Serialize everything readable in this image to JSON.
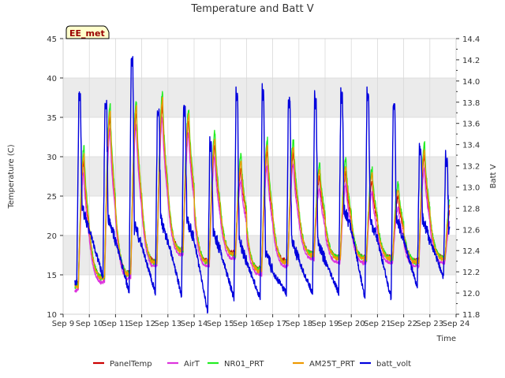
{
  "chart_data": {
    "type": "line",
    "title": "Temperature and Batt V",
    "xlabel": "Time",
    "ylabel_left": "Temperature (C)",
    "ylabel_right": "Batt V",
    "station_label": "EE_met",
    "x_ticks": [
      "Sep 9",
      "Sep 10",
      "Sep 11",
      "Sep 12",
      "Sep 13",
      "Sep 14",
      "Sep 15",
      "Sep 16",
      "Sep 17",
      "Sep 18",
      "Sep 19",
      "Sep 20",
      "Sep 21",
      "Sep 22",
      "Sep 23",
      "Sep 24"
    ],
    "xlim_days": [
      0,
      15
    ],
    "ylim_left": [
      10,
      45
    ],
    "y_ticks_left": [
      "10",
      "15",
      "20",
      "25",
      "30",
      "35",
      "40",
      "45"
    ],
    "ylim_right": [
      11.8,
      14.4
    ],
    "y_ticks_right": [
      "11.8",
      "12.0",
      "12.2",
      "12.4",
      "12.6",
      "12.8",
      "13.0",
      "13.2",
      "13.4",
      "13.6",
      "13.8",
      "14.0",
      "14.2",
      "14.4"
    ],
    "shaded_bands_left": [
      [
        15,
        20
      ],
      [
        25,
        30
      ],
      [
        35,
        40
      ]
    ],
    "x_start_day": 0.45,
    "x_end_day": 14.75,
    "temp_daily": [
      {
        "day": 0,
        "min": 13.5,
        "max": 30.0
      },
      {
        "day": 1,
        "min": 14.5,
        "max": 35.5
      },
      {
        "day": 2,
        "min": 15.0,
        "max": 36.0
      },
      {
        "day": 3,
        "min": 16.5,
        "max": 37.0
      },
      {
        "day": 4,
        "min": 18.0,
        "max": 35.0
      },
      {
        "day": 5,
        "min": 16.5,
        "max": 32.0
      },
      {
        "day": 6,
        "min": 17.5,
        "max": 29.0
      },
      {
        "day": 7,
        "min": 15.5,
        "max": 31.0
      },
      {
        "day": 8,
        "min": 16.5,
        "max": 31.0
      },
      {
        "day": 9,
        "min": 17.5,
        "max": 28.0
      },
      {
        "day": 10,
        "min": 17.0,
        "max": 28.5
      },
      {
        "day": 11,
        "min": 17.0,
        "max": 27.5
      },
      {
        "day": 12,
        "min": 17.0,
        "max": 25.5
      },
      {
        "day": 13,
        "min": 16.5,
        "max": 30.5
      },
      {
        "day": 14,
        "min": 17.0,
        "max": 24.0
      }
    ],
    "batt_daily": [
      {
        "day": 0,
        "peak": 13.9,
        "night_start": 12.6,
        "night_end": 12.05
      },
      {
        "day": 1,
        "peak": 13.83,
        "night_start": 12.5,
        "night_end": 12.15
      },
      {
        "day": 2,
        "peak": 14.25,
        "night_start": 12.45,
        "night_end": 12.0
      },
      {
        "day": 3,
        "peak": 13.78,
        "night_start": 12.5,
        "night_end": 12.0
      },
      {
        "day": 4,
        "peak": 13.78,
        "night_start": 12.5,
        "night_end": 11.98
      },
      {
        "day": 5,
        "peak": 13.45,
        "night_start": 12.4,
        "night_end": 11.82
      },
      {
        "day": 6,
        "peak": 13.9,
        "night_start": 12.3,
        "night_end": 11.95
      },
      {
        "day": 7,
        "peak": 13.92,
        "night_start": 12.2,
        "night_end": 11.95
      },
      {
        "day": 8,
        "peak": 13.85,
        "night_start": 12.3,
        "night_end": 12.0
      },
      {
        "day": 9,
        "peak": 13.85,
        "night_start": 12.3,
        "night_end": 12.0
      },
      {
        "day": 10,
        "peak": 13.9,
        "night_start": 12.6,
        "night_end": 12.0
      },
      {
        "day": 11,
        "peak": 13.9,
        "night_start": 12.5,
        "night_end": 11.95
      },
      {
        "day": 12,
        "peak": 13.82,
        "night_start": 12.5,
        "night_end": 11.95
      },
      {
        "day": 13,
        "peak": 13.4,
        "night_start": 12.5,
        "night_end": 12.05
      },
      {
        "day": 14,
        "peak": 13.3,
        "night_start": 12.4,
        "night_end": 12.15
      }
    ],
    "series": [
      {
        "name": "PanelTemp",
        "color": "#cc0000",
        "axis": "left",
        "min_offset": 0.3,
        "max_offset": -0.5,
        "noise": 0.25
      },
      {
        "name": "AirT",
        "color": "#dd33dd",
        "axis": "left",
        "min_offset": -0.4,
        "max_offset": -2.0,
        "noise": 0.2
      },
      {
        "name": "NR01_PRT",
        "color": "#22ee22",
        "axis": "left",
        "min_offset": 0.2,
        "max_offset": 1.2,
        "noise": 0.35
      },
      {
        "name": "AM25T_PRT",
        "color": "#ee9900",
        "axis": "left",
        "min_offset": 0.1,
        "max_offset": 0.3,
        "noise": 0.25
      },
      {
        "name": "batt_volt",
        "color": "#0000dd",
        "axis": "right"
      }
    ]
  }
}
